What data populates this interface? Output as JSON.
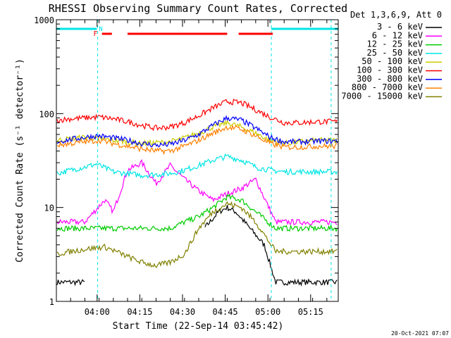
{
  "chart_data": {
    "type": "line",
    "title": "RHESSI Observing Summary Count Rates, Corrected",
    "xlabel": "Start Time (22-Sep-14 03:45:42)",
    "ylabel": "Corrected Count Rate (s⁻¹ detector⁻¹)",
    "yscale": "log",
    "ylim": [
      1,
      1000
    ],
    "x_unit": "minutes since 03:45:42",
    "xlim": [
      0,
      99
    ],
    "y_ticks": [
      "1",
      "10",
      "100",
      "1000"
    ],
    "x_ticks": [
      {
        "label": "04:00",
        "x": 14.3
      },
      {
        "label": "04:15",
        "x": 29.3
      },
      {
        "label": "04:30",
        "x": 44.3
      },
      {
        "label": "04:45",
        "x": 59.3
      },
      {
        "label": "05:00",
        "x": 74.3
      },
      {
        "label": "05:15",
        "x": 89.3
      }
    ],
    "legend_title": "Det 1,3,6,9, Att 0",
    "legend_position": "right",
    "series": [
      {
        "name": "3 - 6 keV",
        "color": "#000000",
        "x": [
          0,
          10,
          17,
          25,
          35,
          45,
          52,
          57,
          60,
          63,
          68,
          73,
          77,
          85,
          92
        ],
        "y": [
          1.6,
          1.6,
          null,
          null,
          null,
          null,
          6,
          9,
          10,
          9,
          6,
          4,
          1.6,
          1.6,
          1.6
        ]
      },
      {
        "name": "6 - 12 keV",
        "color": "#ff00ff",
        "x": [
          0,
          10,
          17,
          20,
          25,
          30,
          35,
          40,
          45,
          50,
          55,
          60,
          65,
          70,
          77,
          82,
          92
        ],
        "y": [
          7,
          7,
          12,
          9,
          25,
          30,
          18,
          28,
          20,
          15,
          12,
          14,
          16,
          20,
          7,
          7,
          7
        ]
      },
      {
        "name": "12 - 25 keV",
        "color": "#00cc00",
        "x": [
          0,
          10,
          20,
          30,
          40,
          45,
          50,
          55,
          60,
          65,
          70,
          77,
          85,
          92
        ],
        "y": [
          6,
          6,
          6,
          6,
          6,
          7,
          8,
          10,
          13,
          12,
          9,
          6,
          6,
          6
        ]
      },
      {
        "name": "25 - 50 keV",
        "color": "#00e5e5",
        "x": [
          0,
          5,
          10,
          14,
          20,
          30,
          40,
          45,
          50,
          55,
          60,
          65,
          70,
          75,
          80,
          85,
          92
        ],
        "y": [
          23,
          25,
          27,
          29,
          24,
          22,
          23,
          25,
          28,
          32,
          35,
          32,
          27,
          25,
          24,
          24,
          24
        ]
      },
      {
        "name": "50 - 100 keV",
        "color": "#cccc00",
        "x": [
          0,
          10,
          20,
          30,
          40,
          45,
          50,
          55,
          60,
          65,
          70,
          75,
          80,
          85,
          92
        ],
        "y": [
          52,
          56,
          52,
          48,
          50,
          55,
          62,
          72,
          80,
          72,
          62,
          52,
          48,
          50,
          52
        ]
      },
      {
        "name": "100 - 300 keV",
        "color": "#ff0000",
        "x": [
          0,
          5,
          10,
          15,
          20,
          25,
          30,
          35,
          40,
          45,
          50,
          55,
          60,
          65,
          70,
          75,
          80,
          85,
          92
        ],
        "y": [
          85,
          88,
          90,
          92,
          88,
          82,
          75,
          70,
          72,
          80,
          95,
          115,
          135,
          130,
          110,
          92,
          80,
          80,
          82
        ]
      },
      {
        "name": "300 - 800 keV",
        "color": "#0000ff",
        "x": [
          0,
          5,
          10,
          15,
          20,
          25,
          30,
          35,
          40,
          45,
          50,
          55,
          60,
          65,
          70,
          75,
          80,
          85,
          92
        ],
        "y": [
          50,
          53,
          56,
          58,
          55,
          52,
          48,
          46,
          47,
          52,
          60,
          75,
          90,
          85,
          70,
          56,
          50,
          50,
          51
        ]
      },
      {
        "name": "800 - 7000 keV",
        "color": "#ff8000",
        "x": [
          0,
          5,
          10,
          15,
          20,
          25,
          30,
          35,
          40,
          45,
          50,
          55,
          60,
          65,
          70,
          75,
          80,
          85,
          92
        ],
        "y": [
          46,
          48,
          50,
          52,
          48,
          45,
          42,
          40,
          40,
          45,
          52,
          62,
          72,
          68,
          58,
          48,
          44,
          44,
          45
        ]
      },
      {
        "name": "7000 - 15000 keV",
        "color": "#808000",
        "x": [
          0,
          10,
          17,
          20,
          25,
          30,
          35,
          40,
          45,
          50,
          55,
          60,
          65,
          70,
          77,
          85,
          92
        ],
        "y": [
          3.2,
          3.6,
          3.8,
          3.5,
          3,
          2.6,
          2.4,
          2.6,
          3.2,
          6,
          9,
          11,
          10,
          7,
          3.4,
          3.4,
          3.4
        ]
      }
    ],
    "annotations": {
      "night_flag": "N",
      "flare_flag": "F",
      "flag_colors": {
        "N": "#00e5e5",
        "F": "#ff0000"
      }
    },
    "timestamp": "20-Oct-2021 07:07"
  }
}
